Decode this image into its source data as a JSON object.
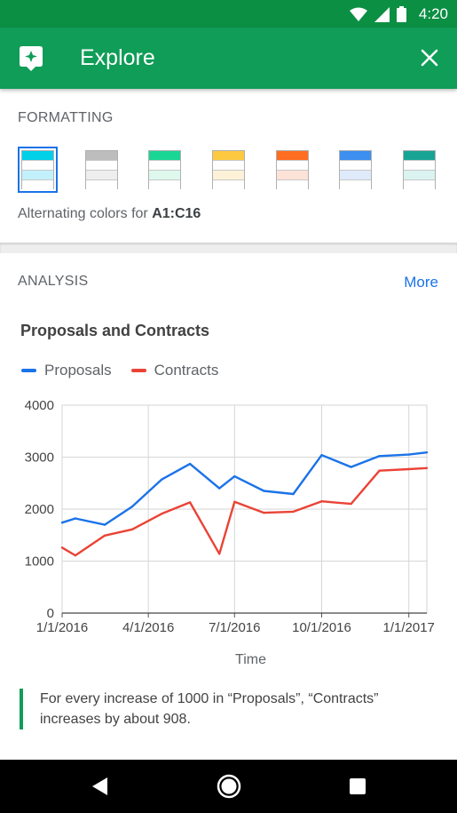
{
  "status_bar": {
    "time": "4:20",
    "icons": [
      "wifi-icon",
      "signal-icon",
      "battery-icon"
    ]
  },
  "app_bar": {
    "title": "Explore",
    "icon": "explore-icon",
    "close_icon": "close-icon",
    "color": "#0f9d58"
  },
  "formatting": {
    "heading": "FORMATTING",
    "alt_text_prefix": "Alternating colors for ",
    "alt_text_range": "A1:C16",
    "swatches": [
      {
        "header": "#00d0e8",
        "band": "#c3f1fb",
        "selected": true
      },
      {
        "header": "#bdbdbd",
        "band": "#eeeeee",
        "selected": false
      },
      {
        "header": "#1ad694",
        "band": "#dff8ee",
        "selected": false
      },
      {
        "header": "#fcc940",
        "band": "#fdf2d8",
        "selected": false
      },
      {
        "header": "#ff6d20",
        "band": "#fde2d8",
        "selected": false
      },
      {
        "header": "#3d8ff0",
        "band": "#dfeafb",
        "selected": false
      },
      {
        "header": "#18a495",
        "band": "#dbf3f0",
        "selected": false
      }
    ]
  },
  "analysis": {
    "heading": "ANALYSIS",
    "more_label": "More"
  },
  "chart_data": {
    "type": "line",
    "title": "Proposals and Contracts",
    "xlabel": "Time",
    "ylabel": "",
    "ylim": [
      0,
      4000
    ],
    "yticks": [
      0,
      1000,
      2000,
      3000,
      4000
    ],
    "xticks": [
      "1/1/2016",
      "4/1/2016",
      "7/1/2016",
      "10/1/2016",
      "1/1/2017"
    ],
    "x": [
      "2016-01-01",
      "2016-01-15",
      "2016-02-15",
      "2016-03-15",
      "2016-04-15",
      "2016-05-15",
      "2016-06-15",
      "2016-07-01",
      "2016-08-01",
      "2016-09-01",
      "2016-10-01",
      "2016-11-01",
      "2016-12-01",
      "2017-01-01",
      "2017-01-20"
    ],
    "series": [
      {
        "name": "Proposals",
        "color": "#1a73e8",
        "values": [
          1740,
          1820,
          1700,
          2050,
          2570,
          2870,
          2400,
          2630,
          2350,
          2290,
          3040,
          2810,
          3020,
          3050,
          3090
        ]
      },
      {
        "name": "Contracts",
        "color": "#ea4335",
        "values": [
          1260,
          1110,
          1490,
          1610,
          1910,
          2130,
          1140,
          2140,
          1930,
          1950,
          2150,
          2100,
          2740,
          2770,
          2790
        ]
      }
    ],
    "grid": true,
    "legend_position": "top-left"
  },
  "insight": {
    "text": "For every increase of 1000 in “Proposals”, “Contracts” increases by about 908.",
    "accent": "#0f9d58"
  },
  "nav_bar": {
    "icons": [
      "back-icon",
      "home-icon",
      "recents-icon"
    ]
  }
}
